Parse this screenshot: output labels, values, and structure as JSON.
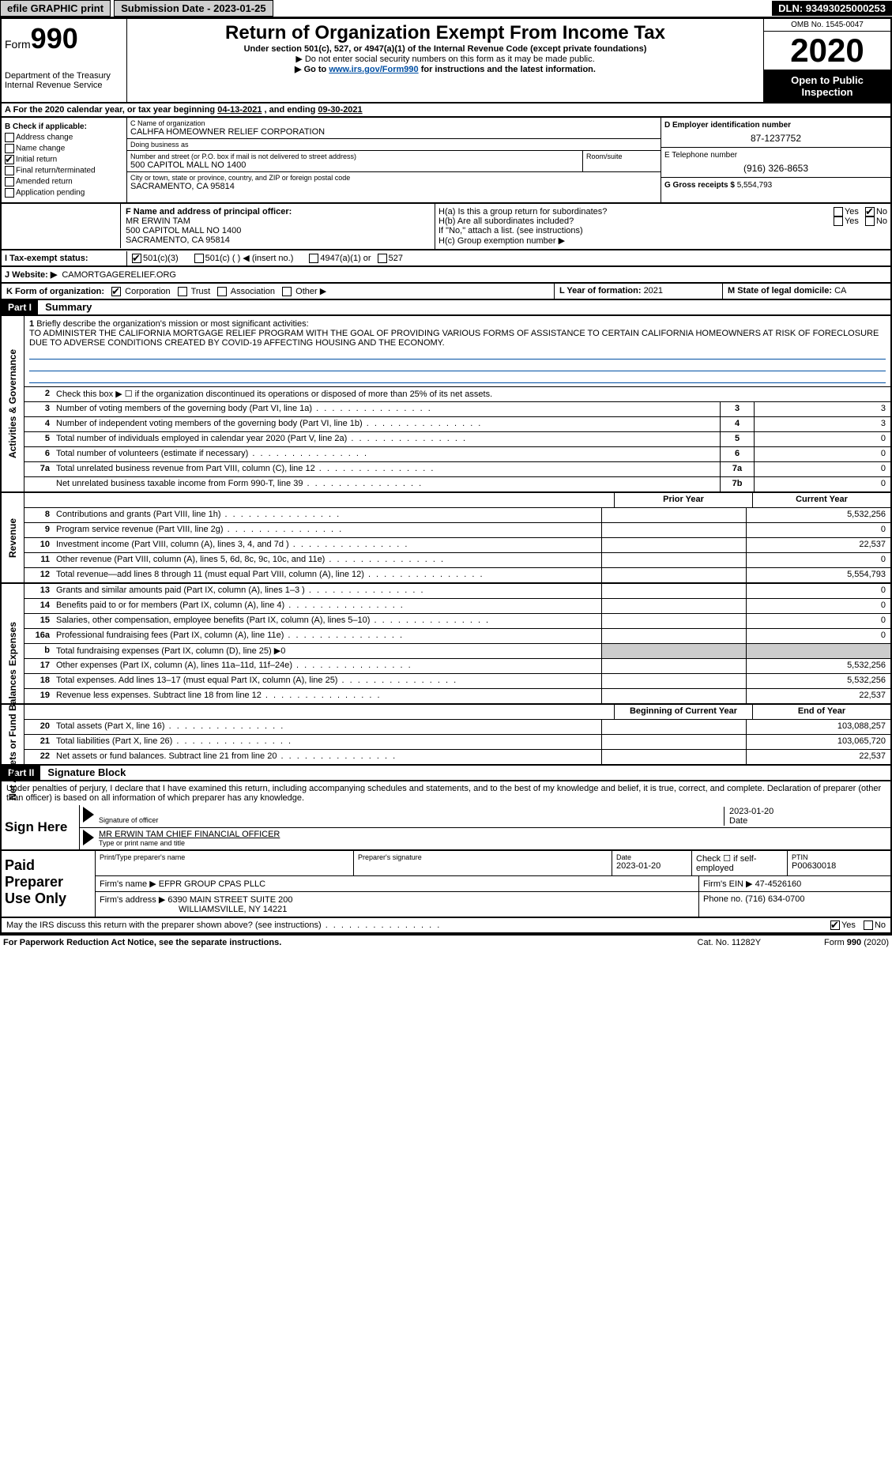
{
  "topbar": {
    "efile": "efile GRAPHIC print",
    "submission_label": "Submission Date - 2023-01-25",
    "dln": "DLN: 93493025000253"
  },
  "header": {
    "form_prefix": "Form",
    "form_number": "990",
    "dept": "Department of the Treasury\nInternal Revenue Service",
    "title": "Return of Organization Exempt From Income Tax",
    "sub1": "Under section 501(c), 527, or 4947(a)(1) of the Internal Revenue Code (except private foundations)",
    "sub2": "▶ Do not enter social security numbers on this form as it may be made public.",
    "sub3_pre": "▶ Go to ",
    "sub3_link": "www.irs.gov/Form990",
    "sub3_post": " for instructions and the latest information.",
    "omb": "OMB No. 1545-0047",
    "year": "2020",
    "open": "Open to Public Inspection"
  },
  "row_a": {
    "text_pre": "For the 2020 calendar year, or tax year beginning ",
    "date1": "04-13-2021",
    "text_mid": " , and ending ",
    "date2": "09-30-2021"
  },
  "sec_b": {
    "title": "B Check if applicable:",
    "addr_change": "Address change",
    "name_change": "Name change",
    "initial": "Initial return",
    "final": "Final return/terminated",
    "amended": "Amended return",
    "app_pending": "Application pending"
  },
  "sec_c": {
    "name_label": "C Name of organization",
    "name": "CALHFA HOMEOWNER RELIEF CORPORATION",
    "dba_label": "Doing business as",
    "dba": "",
    "addr_label": "Number and street (or P.O. box if mail is not delivered to street address)",
    "room_label": "Room/suite",
    "addr": "500 CAPITOL MALL NO 1400",
    "city_label": "City or town, state or province, country, and ZIP or foreign postal code",
    "city": "SACRAMENTO, CA  95814"
  },
  "sec_de": {
    "d_label": "D Employer identification number",
    "d_val": "87-1237752",
    "e_label": "E Telephone number",
    "e_val": "(916) 326-8653",
    "g_label": "G Gross receipts $ ",
    "g_val": "5,554,793"
  },
  "sec_f": {
    "label": "F Name and address of principal officer:",
    "name": "MR ERWIN TAM",
    "addr1": "500 CAPITOL MALL NO 1400",
    "addr2": "SACRAMENTO, CA  95814"
  },
  "sec_h": {
    "ha_label": "H(a)  Is this a group return for subordinates?",
    "hb_label": "H(b)  Are all subordinates included?",
    "hb_note": "If \"No,\" attach a list. (see instructions)",
    "hc_label": "H(c)  Group exemption number ▶",
    "yes": "Yes",
    "no": "No"
  },
  "row_i": {
    "label": "I  Tax-exempt status:",
    "o1": "501(c)(3)",
    "o2": "501(c) (   ) ◀ (insert no.)",
    "o3": "4947(a)(1) or",
    "o4": "527"
  },
  "row_j": {
    "label": "J  Website: ▶",
    "val": "CAMORTGAGERELIEF.ORG"
  },
  "row_k": {
    "label": "K Form of organization:",
    "o1": "Corporation",
    "o2": "Trust",
    "o3": "Association",
    "o4": "Other ▶"
  },
  "row_l": {
    "l_label": "L Year of formation: ",
    "l_val": "2021",
    "m_label": "M State of legal domicile: ",
    "m_val": "CA"
  },
  "part1": {
    "bar": "Part I",
    "title": "Summary",
    "line1_label": "Briefly describe the organization's mission or most significant activities:",
    "mission": "TO ADMINISTER THE CALIFORNIA MORTGAGE RELIEF PROGRAM WITH THE GOAL OF PROVIDING VARIOUS FORMS OF ASSISTANCE TO CERTAIN CALIFORNIA HOMEOWNERS AT RISK OF FORECLOSURE DUE TO ADVERSE CONDITIONS CREATED BY COVID-19 AFFECTING HOUSING AND THE ECONOMY.",
    "line2": "Check this box ▶ ☐ if the organization discontinued its operations or disposed of more than 25% of its net assets.",
    "lines_ag": [
      {
        "n": "3",
        "t": "Number of voting members of the governing body (Part VI, line 1a)",
        "b": "3",
        "v": "3"
      },
      {
        "n": "4",
        "t": "Number of independent voting members of the governing body (Part VI, line 1b)",
        "b": "4",
        "v": "3"
      },
      {
        "n": "5",
        "t": "Total number of individuals employed in calendar year 2020 (Part V, line 2a)",
        "b": "5",
        "v": "0"
      },
      {
        "n": "6",
        "t": "Total number of volunteers (estimate if necessary)",
        "b": "6",
        "v": "0"
      },
      {
        "n": "7a",
        "t": "Total unrelated business revenue from Part VIII, column (C), line 12",
        "b": "7a",
        "v": "0"
      },
      {
        "n": "",
        "t": "Net unrelated business taxable income from Form 990-T, line 39",
        "b": "7b",
        "v": "0"
      }
    ],
    "prior_year": "Prior Year",
    "current_year": "Current Year",
    "rev_lines": [
      {
        "n": "8",
        "t": "Contributions and grants (Part VIII, line 1h)",
        "py": "",
        "cy": "5,532,256"
      },
      {
        "n": "9",
        "t": "Program service revenue (Part VIII, line 2g)",
        "py": "",
        "cy": "0"
      },
      {
        "n": "10",
        "t": "Investment income (Part VIII, column (A), lines 3, 4, and 7d )",
        "py": "",
        "cy": "22,537"
      },
      {
        "n": "11",
        "t": "Other revenue (Part VIII, column (A), lines 5, 6d, 8c, 9c, 10c, and 11e)",
        "py": "",
        "cy": "0"
      },
      {
        "n": "12",
        "t": "Total revenue—add lines 8 through 11 (must equal Part VIII, column (A), line 12)",
        "py": "",
        "cy": "5,554,793"
      }
    ],
    "exp_lines": [
      {
        "n": "13",
        "t": "Grants and similar amounts paid (Part IX, column (A), lines 1–3 )",
        "py": "",
        "cy": "0"
      },
      {
        "n": "14",
        "t": "Benefits paid to or for members (Part IX, column (A), line 4)",
        "py": "",
        "cy": "0"
      },
      {
        "n": "15",
        "t": "Salaries, other compensation, employee benefits (Part IX, column (A), lines 5–10)",
        "py": "",
        "cy": "0"
      },
      {
        "n": "16a",
        "t": "Professional fundraising fees (Part IX, column (A), line 11e)",
        "py": "",
        "cy": "0"
      },
      {
        "n": "b",
        "t": "Total fundraising expenses (Part IX, column (D), line 25) ▶0",
        "py": "—",
        "cy": "—"
      },
      {
        "n": "17",
        "t": "Other expenses (Part IX, column (A), lines 11a–11d, 11f–24e)",
        "py": "",
        "cy": "5,532,256"
      },
      {
        "n": "18",
        "t": "Total expenses. Add lines 13–17 (must equal Part IX, column (A), line 25)",
        "py": "",
        "cy": "5,532,256"
      },
      {
        "n": "19",
        "t": "Revenue less expenses. Subtract line 18 from line 12",
        "py": "",
        "cy": "22,537"
      }
    ],
    "begin_year": "Beginning of Current Year",
    "end_year": "End of Year",
    "na_lines": [
      {
        "n": "20",
        "t": "Total assets (Part X, line 16)",
        "py": "",
        "cy": "103,088,257"
      },
      {
        "n": "21",
        "t": "Total liabilities (Part X, line 26)",
        "py": "",
        "cy": "103,065,720"
      },
      {
        "n": "22",
        "t": "Net assets or fund balances. Subtract line 21 from line 20",
        "py": "",
        "cy": "22,537"
      }
    ],
    "side_ag": "Activities & Governance",
    "side_rev": "Revenue",
    "side_exp": "Expenses",
    "side_na": "Net Assets or Fund Balances"
  },
  "part2": {
    "bar": "Part II",
    "title": "Signature Block",
    "decl": "Under penalties of perjury, I declare that I have examined this return, including accompanying schedules and statements, and to the best of my knowledge and belief, it is true, correct, and complete. Declaration of preparer (other than officer) is based on all information of which preparer has any knowledge.",
    "sign_here": "Sign Here",
    "sig_of_officer": "Signature of officer",
    "date_label": "Date",
    "date_val": "2023-01-20",
    "name_title": "MR ERWIN TAM  CHIEF FINANCIAL OFFICER",
    "type_label": "Type or print name and title",
    "paid": "Paid Preparer Use Only",
    "prep_name_label": "Print/Type preparer's name",
    "prep_sig_label": "Preparer's signature",
    "prep_date": "2023-01-20",
    "self_emp": "Check ☐ if self-employed",
    "ptin_label": "PTIN",
    "ptin": "P00630018",
    "firm_name_label": "Firm's name    ▶",
    "firm_name": "EFPR GROUP CPAS PLLC",
    "firm_ein_label": "Firm's EIN ▶",
    "firm_ein": "47-4526160",
    "firm_addr_label": "Firm's address ▶",
    "firm_addr1": "6390 MAIN STREET SUITE 200",
    "firm_addr2": "WILLIAMSVILLE, NY  14221",
    "phone_label": "Phone no. ",
    "phone": "(716) 634-0700",
    "may_discuss": "May the IRS discuss this return with the preparer shown above? (see instructions)"
  },
  "footer": {
    "pra": "For Paperwork Reduction Act Notice, see the separate instructions.",
    "cat": "Cat. No. 11282Y",
    "form": "Form 990 (2020)"
  }
}
